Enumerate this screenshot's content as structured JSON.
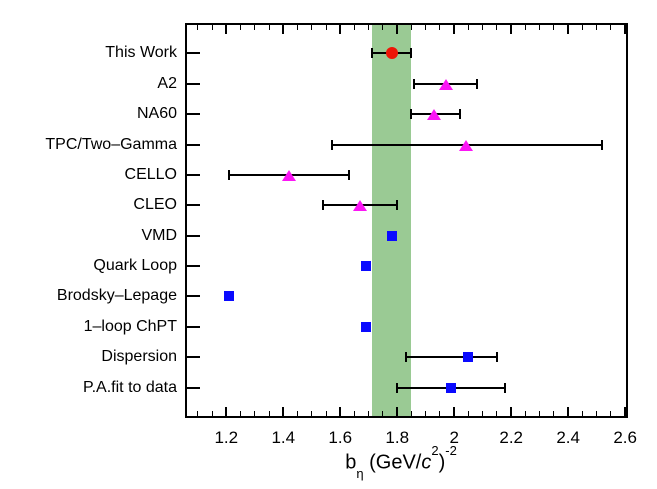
{
  "figure": {
    "background": "#ffffff",
    "frame_color": "#000000"
  },
  "chart_data": {
    "type": "scatter",
    "orientation": "horizontal-categories",
    "title": "",
    "xlabel_parts": {
      "base": "b",
      "sub": "η",
      "mid": " (GeV/",
      "c": "c",
      "c_sup": "2",
      "close": ")",
      "exp": "-2"
    },
    "xlabel_plain": "b_eta (GeV/c^2)^-2",
    "xlim": [
      1.055,
      2.61
    ],
    "x_major_ticks": [
      1.2,
      1.4,
      1.6,
      1.8,
      2.0,
      2.2,
      2.4,
      2.6
    ],
    "x_tick_labels": [
      "1.2",
      "1.4",
      "1.6",
      "1.8",
      "2",
      "2.2",
      "2.4",
      "2.6"
    ],
    "x_minor_tick_start": 1.1,
    "x_minor_tick_end": 2.6,
    "x_minor_tick_step": 0.05,
    "grid": false,
    "legend": "none",
    "band": {
      "from": 1.71,
      "to": 1.85,
      "color": "#9aca94",
      "meaning": "this-work-uncertainty-band"
    },
    "colors": {
      "this_work": "#ee1507",
      "experiments": "#fb16f5",
      "theory": "#0a0aff",
      "error_bars": "#000000"
    },
    "points": [
      {
        "label": "This Work",
        "value": 1.78,
        "low": 1.71,
        "high": 1.85,
        "marker": "circle",
        "color": "#ee1507"
      },
      {
        "label": "A2",
        "value": 1.97,
        "low": 1.86,
        "high": 2.08,
        "marker": "triangle",
        "color": "#fb16f5"
      },
      {
        "label": "NA60",
        "value": 1.93,
        "low": 1.85,
        "high": 2.02,
        "marker": "triangle",
        "color": "#fb16f5"
      },
      {
        "label": "TPC/Two–Gamma",
        "value": 2.04,
        "low": 1.57,
        "high": 2.52,
        "marker": "triangle",
        "color": "#fb16f5"
      },
      {
        "label": "CELLO",
        "value": 1.42,
        "low": 1.21,
        "high": 1.63,
        "marker": "triangle",
        "color": "#fb16f5"
      },
      {
        "label": "CLEO",
        "value": 1.67,
        "low": 1.54,
        "high": 1.8,
        "marker": "triangle",
        "color": "#fb16f5"
      },
      {
        "label": "VMD",
        "value": 1.78,
        "low": null,
        "high": null,
        "marker": "square",
        "color": "#0a0aff"
      },
      {
        "label": "Quark Loop",
        "value": 1.69,
        "low": null,
        "high": null,
        "marker": "square",
        "color": "#0a0aff"
      },
      {
        "label": "Brodsky–Lepage",
        "value": 1.21,
        "low": null,
        "high": null,
        "marker": "square",
        "color": "#0a0aff"
      },
      {
        "label": "1–loop ChPT",
        "value": 1.69,
        "low": null,
        "high": null,
        "marker": "square",
        "color": "#0a0aff"
      },
      {
        "label": "Dispersion",
        "value": 2.05,
        "low": 1.83,
        "high": 2.15,
        "marker": "square",
        "color": "#0a0aff"
      },
      {
        "label": "P.A.fit to data",
        "value": 1.99,
        "low": 1.8,
        "high": 2.18,
        "marker": "square",
        "color": "#0a0aff"
      }
    ]
  }
}
